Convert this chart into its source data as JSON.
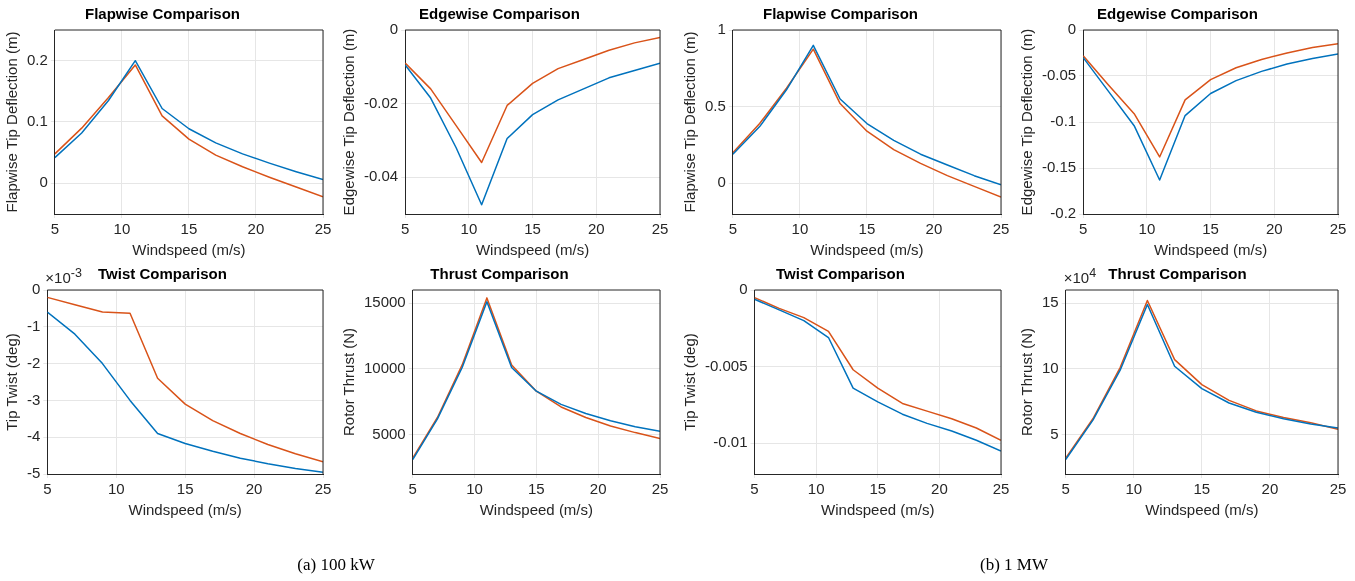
{
  "chart_data": [
    {
      "type": "line",
      "title": "Flapwise Comparison",
      "xlabel": "Windspeed (m/s)",
      "ylabel": "Flapwise Tip Deflection (m)",
      "x": [
        5,
        7,
        9,
        11,
        13,
        15,
        17,
        19,
        21,
        23,
        25
      ],
      "xlim": [
        5,
        25
      ],
      "xticks": [
        5,
        10,
        15,
        20,
        25
      ],
      "ylim": [
        -0.05,
        0.25
      ],
      "yticks": [
        0,
        0.1,
        0.2
      ],
      "grid": true,
      "legend": false,
      "series": [
        {
          "color": "#0072bd",
          "values": [
            0.042,
            0.082,
            0.135,
            0.2,
            0.122,
            0.089,
            0.066,
            0.048,
            0.033,
            0.019,
            0.006
          ]
        },
        {
          "color": "#d95319",
          "values": [
            0.048,
            0.09,
            0.14,
            0.193,
            0.11,
            0.072,
            0.046,
            0.027,
            0.01,
            -0.006,
            -0.022
          ]
        }
      ]
    },
    {
      "type": "line",
      "title": "Edgewise Comparison",
      "xlabel": "Windspeed (m/s)",
      "ylabel": "Edgewise Tip Deflection (m)",
      "x": [
        5,
        7,
        9,
        11,
        13,
        15,
        17,
        19,
        21,
        23,
        25
      ],
      "xlim": [
        5,
        25
      ],
      "xticks": [
        5,
        10,
        15,
        20,
        25
      ],
      "ylim": [
        -0.05,
        0
      ],
      "yticks": [
        -0.04,
        -0.02,
        0
      ],
      "grid": true,
      "legend": false,
      "series": [
        {
          "color": "#0072bd",
          "values": [
            -0.0095,
            -0.0185,
            -0.032,
            -0.0475,
            -0.0295,
            -0.023,
            -0.019,
            -0.016,
            -0.013,
            -0.011,
            -0.009
          ]
        },
        {
          "color": "#d95319",
          "values": [
            -0.009,
            -0.016,
            -0.026,
            -0.036,
            -0.0205,
            -0.0145,
            -0.0105,
            -0.008,
            -0.0055,
            -0.0035,
            -0.002
          ]
        }
      ]
    },
    {
      "type": "line",
      "title": "Flapwise Comparison",
      "xlabel": "Windspeed (m/s)",
      "ylabel": "Flapwise Tip Deflection (m)",
      "x": [
        5,
        7,
        9,
        11,
        13,
        15,
        17,
        19,
        21,
        23,
        25
      ],
      "xlim": [
        5,
        25
      ],
      "xticks": [
        5,
        10,
        15,
        20,
        25
      ],
      "ylim": [
        -0.2,
        1
      ],
      "yticks": [
        0,
        0.5,
        1
      ],
      "grid": true,
      "legend": false,
      "series": [
        {
          "color": "#0072bd",
          "values": [
            0.19,
            0.37,
            0.61,
            0.9,
            0.55,
            0.39,
            0.28,
            0.19,
            0.12,
            0.05,
            -0.01
          ]
        },
        {
          "color": "#d95319",
          "values": [
            0.2,
            0.39,
            0.62,
            0.875,
            0.52,
            0.34,
            0.22,
            0.13,
            0.05,
            -0.02,
            -0.09
          ]
        }
      ]
    },
    {
      "type": "line",
      "title": "Edgewise Comparison",
      "xlabel": "Windspeed (m/s)",
      "ylabel": "Edgewise Tip Deflection (m)",
      "x": [
        5,
        7,
        9,
        11,
        13,
        15,
        17,
        19,
        21,
        23,
        25
      ],
      "xlim": [
        5,
        25
      ],
      "xticks": [
        5,
        10,
        15,
        20,
        25
      ],
      "ylim": [
        -0.2,
        0
      ],
      "yticks": [
        -0.2,
        -0.15,
        -0.1,
        -0.05,
        0
      ],
      "grid": true,
      "legend": false,
      "series": [
        {
          "color": "#0072bd",
          "values": [
            -0.03,
            -0.067,
            -0.104,
            -0.163,
            -0.093,
            -0.069,
            -0.055,
            -0.045,
            -0.037,
            -0.031,
            -0.026
          ]
        },
        {
          "color": "#d95319",
          "values": [
            -0.028,
            -0.06,
            -0.091,
            -0.138,
            -0.076,
            -0.054,
            -0.041,
            -0.032,
            -0.025,
            -0.019,
            -0.015
          ]
        }
      ]
    },
    {
      "type": "line",
      "title": "Twist Comparison",
      "xlabel": "Windspeed (m/s)",
      "ylabel": "Tip Twist (deg)",
      "x": [
        5,
        7,
        9,
        11,
        13,
        15,
        17,
        19,
        21,
        23,
        25
      ],
      "xlim": [
        5,
        25
      ],
      "xticks": [
        5,
        10,
        15,
        20,
        25
      ],
      "ylim": [
        -5,
        0
      ],
      "yticks": [
        -5,
        -4,
        -3,
        -2,
        -1,
        0
      ],
      "grid": true,
      "legend": false,
      "annotations": [
        "×10$^{-3}$",
        "(a) 100 kW"
      ],
      "series": [
        {
          "color": "#0072bd",
          "values": [
            -0.6,
            -1.2,
            -2.0,
            -3.0,
            -3.9,
            -4.17,
            -4.38,
            -4.57,
            -4.72,
            -4.85,
            -4.95
          ]
        },
        {
          "color": "#d95319",
          "values": [
            -0.2,
            -0.4,
            -0.6,
            -0.63,
            -2.4,
            -3.1,
            -3.55,
            -3.9,
            -4.2,
            -4.45,
            -4.67
          ]
        }
      ]
    },
    {
      "type": "line",
      "title": "Thrust Comparison",
      "xlabel": "Windspeed (m/s)",
      "ylabel": "Rotor Thrust (N)",
      "x": [
        5,
        7,
        9,
        11,
        13,
        15,
        17,
        19,
        21,
        23,
        25
      ],
      "xlim": [
        5,
        25
      ],
      "xticks": [
        5,
        10,
        15,
        20,
        25
      ],
      "ylim": [
        2000,
        16000
      ],
      "yticks": [
        5000,
        10000,
        15000
      ],
      "grid": true,
      "legend": false,
      "series": [
        {
          "color": "#0072bd",
          "values": [
            3100,
            6200,
            10100,
            15100,
            10100,
            8300,
            7300,
            6600,
            6050,
            5600,
            5250
          ]
        },
        {
          "color": "#d95319",
          "values": [
            3200,
            6300,
            10300,
            15400,
            10300,
            8300,
            7100,
            6300,
            5650,
            5150,
            4700
          ]
        }
      ]
    },
    {
      "type": "line",
      "title": "Twist Comparison",
      "xlabel": "Windspeed (m/s)",
      "ylabel": "Tip Twist (deg)",
      "x": [
        5,
        7,
        9,
        11,
        13,
        15,
        17,
        19,
        21,
        23,
        25
      ],
      "xlim": [
        5,
        25
      ],
      "xticks": [
        5,
        10,
        15,
        20,
        25
      ],
      "ylim": [
        -0.012,
        0
      ],
      "yticks": [
        -0.01,
        -0.005,
        0
      ],
      "grid": true,
      "legend": false,
      "series": [
        {
          "color": "#0072bd",
          "values": [
            -0.0006,
            -0.0013,
            -0.002,
            -0.0031,
            -0.0064,
            -0.0073,
            -0.0081,
            -0.0087,
            -0.0092,
            -0.0098,
            -0.0105
          ]
        },
        {
          "color": "#d95319",
          "values": [
            -0.0005,
            -0.0012,
            -0.0018,
            -0.0027,
            -0.0052,
            -0.0064,
            -0.0074,
            -0.0079,
            -0.0084,
            -0.009,
            -0.0098
          ]
        }
      ]
    },
    {
      "type": "line",
      "title": "Thrust Comparison",
      "xlabel": "Windspeed (m/s)",
      "ylabel": "Rotor Thrust (N)",
      "x": [
        5,
        7,
        9,
        11,
        13,
        15,
        17,
        19,
        21,
        23,
        25
      ],
      "xlim": [
        5,
        25
      ],
      "xticks": [
        5,
        10,
        15,
        20,
        25
      ],
      "ylim": [
        2,
        16
      ],
      "yticks": [
        5,
        10,
        15
      ],
      "grid": true,
      "legend": false,
      "annotations": [
        "×10$^{4}$",
        "(b) 1 MW"
      ],
      "series": [
        {
          "color": "#0072bd",
          "values": [
            3.1,
            6.1,
            9.9,
            14.9,
            10.2,
            8.5,
            7.4,
            6.7,
            6.2,
            5.8,
            5.5
          ]
        },
        {
          "color": "#d95319",
          "values": [
            3.2,
            6.2,
            10.1,
            15.2,
            10.7,
            8.8,
            7.6,
            6.8,
            6.3,
            5.9,
            5.4
          ]
        }
      ]
    }
  ]
}
